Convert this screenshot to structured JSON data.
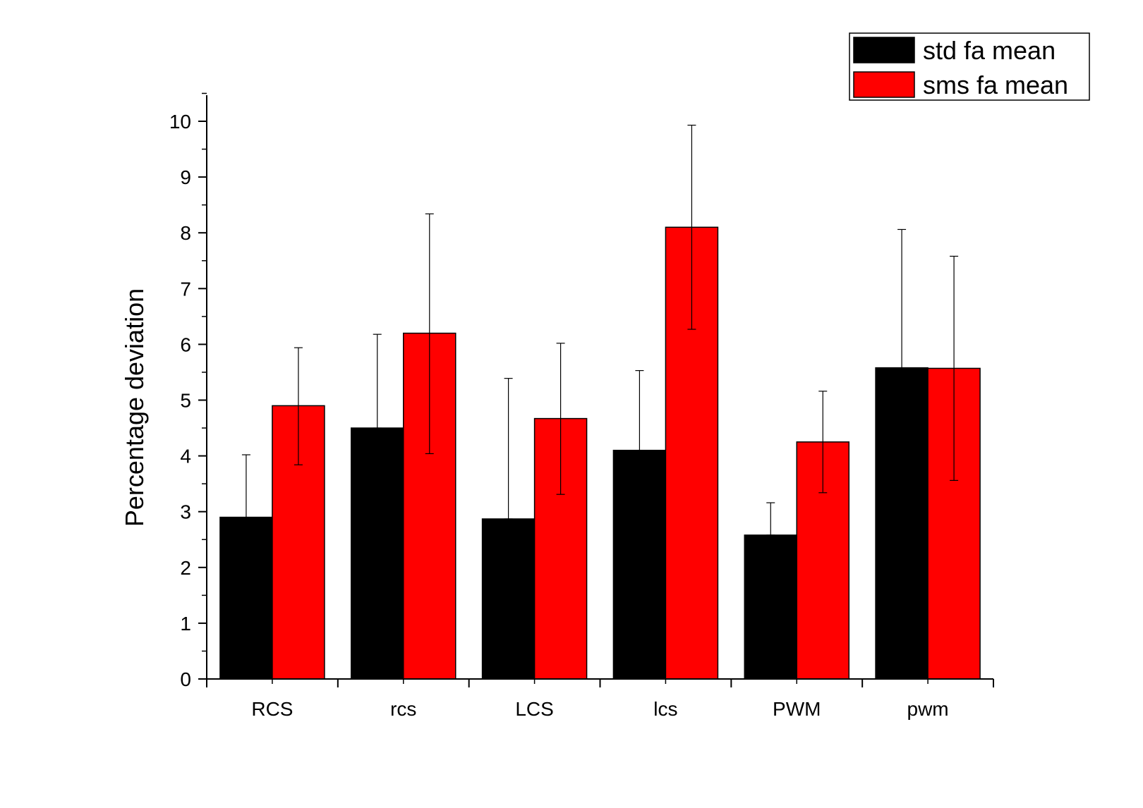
{
  "chart_data": {
    "type": "bar",
    "title": "",
    "xlabel": "",
    "ylabel": "Percentage deviation",
    "ylim": [
      0,
      10.5
    ],
    "yticks": [
      0,
      1,
      2,
      3,
      4,
      5,
      6,
      7,
      8,
      9,
      10
    ],
    "categories": [
      "RCS",
      "rcs",
      "LCS",
      "lcs",
      "PWM",
      "pwm"
    ],
    "series": [
      {
        "name": "std fa mean",
        "color": "#000000",
        "values": [
          2.9,
          4.5,
          2.87,
          4.1,
          2.58,
          5.58
        ],
        "error_upper": [
          4.02,
          6.18,
          5.39,
          5.53,
          3.16,
          8.06
        ],
        "error_lower": [
          2.9,
          4.5,
          2.87,
          4.1,
          2.58,
          5.58
        ]
      },
      {
        "name": "sms fa mean",
        "color": "#ff0000",
        "values": [
          4.9,
          6.2,
          4.67,
          8.1,
          4.25,
          5.57
        ],
        "error_upper": [
          5.94,
          8.34,
          6.02,
          9.93,
          5.16,
          7.58
        ],
        "error_lower": [
          3.84,
          4.04,
          3.31,
          6.27,
          3.34,
          3.56
        ]
      }
    ],
    "grid": false,
    "legend_position": "top-right"
  }
}
